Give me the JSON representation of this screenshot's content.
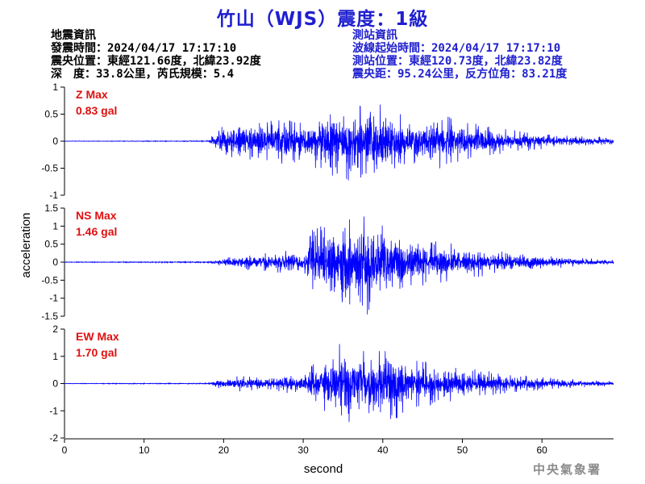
{
  "header": {
    "title": "竹山（WJS）震度：1級"
  },
  "earthquake_info": [
    "地震資訊",
    "發震時間：2024/04/17 17:17:10",
    "震央位置：東經121.66度，北緯23.92度",
    "深　度：33.8公里，芮氏規模：5.4"
  ],
  "station_info": [
    "測站資訊",
    "波線起始時間：2024/04/17 17:17:10",
    "測站位置：東經120.73度，北緯23.82度",
    "震央距：95.24公里，反方位角：83.21度"
  ],
  "watermark": "中央氣象署",
  "colors": {
    "title": "#1f1fd0",
    "trace": "#0000ff",
    "max_label": "#e01010",
    "station_info": "#1f1fd0"
  },
  "chart_data": {
    "type": "line",
    "xlabel": "second",
    "ylabel": "acceleration",
    "xlim": [
      0,
      69
    ],
    "xticks": [
      "0",
      "10",
      "20",
      "30",
      "40",
      "50",
      "60"
    ],
    "panels": [
      {
        "name": "Z",
        "max_title": "Z Max",
        "max_value": "0.83 gal",
        "ylim": [
          -1,
          1
        ],
        "yticks": [
          "1",
          "0.5",
          "0",
          "-0.5",
          "-1"
        ],
        "envelope": [
          [
            0,
            0.005
          ],
          [
            8,
            0.006
          ],
          [
            18,
            0.01
          ],
          [
            18.5,
            0.1
          ],
          [
            20,
            0.3
          ],
          [
            22,
            0.4
          ],
          [
            24,
            0.32
          ],
          [
            27,
            0.45
          ],
          [
            30,
            0.38
          ],
          [
            33,
            0.62
          ],
          [
            35,
            0.7
          ],
          [
            36,
            0.83
          ],
          [
            38,
            0.62
          ],
          [
            40,
            0.7
          ],
          [
            42,
            0.55
          ],
          [
            44,
            0.45
          ],
          [
            47,
            0.52
          ],
          [
            50,
            0.38
          ],
          [
            53,
            0.28
          ],
          [
            57,
            0.2
          ],
          [
            62,
            0.12
          ],
          [
            69,
            0.06
          ]
        ]
      },
      {
        "name": "NS",
        "max_title": "NS Max",
        "max_value": "1.46 gal",
        "ylim": [
          -1.5,
          1.5
        ],
        "yticks": [
          "1.5",
          "1",
          "0.5",
          "0",
          "-0.5",
          "-1",
          "-1.5"
        ],
        "envelope": [
          [
            0,
            0.01
          ],
          [
            18,
            0.02
          ],
          [
            19,
            0.08
          ],
          [
            22,
            0.2
          ],
          [
            25,
            0.25
          ],
          [
            28,
            0.35
          ],
          [
            30,
            0.2
          ],
          [
            31,
            0.9
          ],
          [
            33,
            1.1
          ],
          [
            35,
            1.3
          ],
          [
            37,
            1.05
          ],
          [
            38,
            1.46
          ],
          [
            40,
            1.1
          ],
          [
            42,
            0.85
          ],
          [
            45,
            0.65
          ],
          [
            48,
            0.55
          ],
          [
            52,
            0.42
          ],
          [
            55,
            0.3
          ],
          [
            60,
            0.2
          ],
          [
            65,
            0.12
          ],
          [
            69,
            0.06
          ]
        ]
      },
      {
        "name": "EW",
        "max_title": "EW Max",
        "max_value": "1.70 gal",
        "ylim": [
          -2,
          2
        ],
        "yticks": [
          "2",
          "1",
          "0",
          "-1",
          "-2"
        ],
        "envelope": [
          [
            0,
            0.01
          ],
          [
            18,
            0.02
          ],
          [
            19,
            0.15
          ],
          [
            22,
            0.3
          ],
          [
            25,
            0.22
          ],
          [
            26,
            0.25
          ],
          [
            28,
            0.35
          ],
          [
            30,
            0.3
          ],
          [
            31,
            0.7
          ],
          [
            32,
            1.0
          ],
          [
            34,
            1.3
          ],
          [
            35,
            1.7
          ],
          [
            37,
            1.3
          ],
          [
            39,
            1.1
          ],
          [
            41,
            1.5
          ],
          [
            43,
            1.0
          ],
          [
            45,
            0.85
          ],
          [
            48,
            0.7
          ],
          [
            52,
            0.5
          ],
          [
            56,
            0.35
          ],
          [
            60,
            0.25
          ],
          [
            65,
            0.15
          ],
          [
            69,
            0.1
          ]
        ]
      }
    ]
  }
}
